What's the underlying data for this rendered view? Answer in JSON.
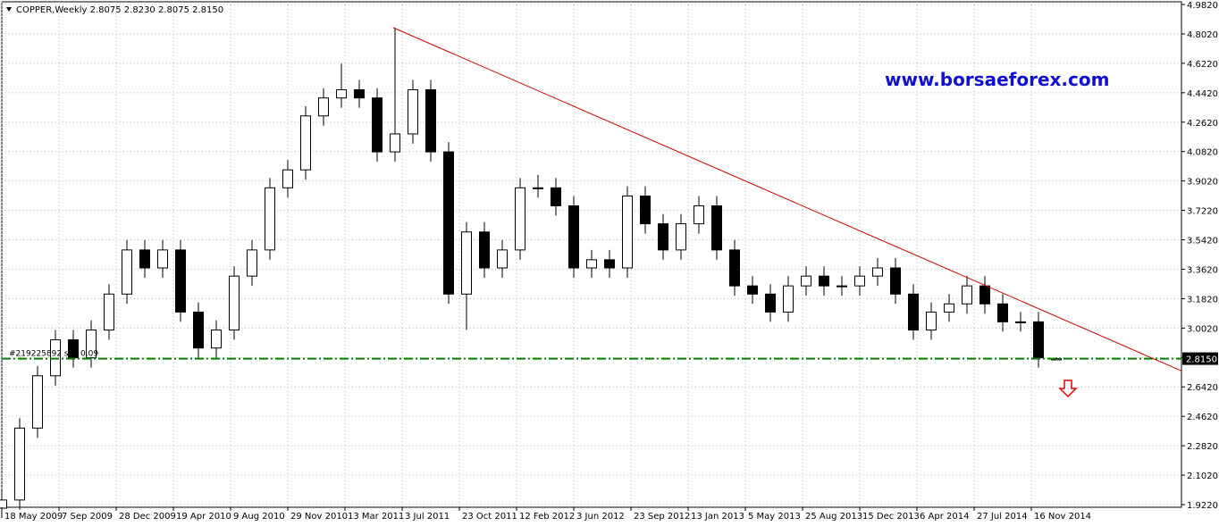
{
  "chart_data": {
    "type": "candlestick",
    "title": "COPPER,Weekly  2.8075 2.8230 2.8075 2.8150",
    "watermark": "www.borsaeforex.com",
    "x": [
      0,
      5,
      10,
      15,
      20,
      25,
      30,
      35,
      40,
      45,
      50,
      55,
      60,
      65,
      70,
      75,
      80,
      85,
      90,
      95,
      100,
      105,
      110,
      115,
      120,
      125,
      130,
      135,
      140,
      145,
      150,
      155,
      160,
      165,
      170,
      175,
      180,
      185,
      190,
      195,
      200,
      205,
      210,
      215,
      220,
      225,
      230,
      235,
      240,
      245,
      250,
      255,
      260,
      265,
      270,
      275,
      280,
      285,
      290,
      295
    ],
    "open": [
      1.9,
      1.95,
      2.39,
      2.71,
      2.93,
      2.82,
      2.99,
      3.21,
      3.48,
      3.37,
      3.48,
      3.1,
      2.88,
      2.99,
      3.32,
      3.48,
      3.86,
      3.97,
      4.3,
      4.41,
      4.46,
      4.41,
      4.08,
      4.19,
      4.46,
      4.08,
      3.21,
      3.59,
      3.37,
      3.48,
      3.86,
      3.86,
      3.75,
      3.37,
      3.42,
      3.37,
      3.81,
      3.64,
      3.48,
      3.64,
      3.75,
      3.48,
      3.26,
      3.21,
      3.1,
      3.26,
      3.32,
      3.26,
      3.26,
      3.32,
      3.37,
      3.21,
      2.99,
      3.1,
      3.15,
      3.26,
      3.15,
      3.04,
      3.04,
      2.8075
    ],
    "high": [
      2.01,
      2.45,
      2.77,
      2.99,
      2.99,
      3.05,
      3.27,
      3.54,
      3.54,
      3.54,
      3.54,
      3.16,
      3.05,
      3.38,
      3.54,
      3.92,
      4.03,
      4.36,
      4.47,
      4.62,
      4.52,
      4.47,
      4.84,
      4.52,
      4.52,
      4.14,
      3.65,
      3.65,
      3.54,
      3.92,
      3.94,
      3.92,
      3.81,
      3.48,
      3.48,
      3.87,
      3.87,
      3.7,
      3.7,
      3.81,
      3.81,
      3.54,
      3.32,
      3.27,
      3.32,
      3.38,
      3.38,
      3.32,
      3.38,
      3.43,
      3.43,
      3.27,
      3.16,
      3.21,
      3.32,
      3.32,
      3.21,
      3.1,
      3.1,
      2.823
    ],
    "low": [
      1.84,
      1.89,
      2.33,
      2.65,
      2.76,
      2.76,
      2.93,
      3.15,
      3.31,
      3.31,
      3.04,
      2.82,
      2.82,
      2.93,
      3.26,
      3.42,
      3.8,
      3.91,
      4.24,
      4.35,
      4.35,
      4.02,
      4.02,
      4.13,
      4.02,
      3.15,
      2.99,
      3.31,
      3.31,
      3.42,
      3.8,
      3.69,
      3.31,
      3.31,
      3.31,
      3.31,
      3.58,
      3.42,
      3.42,
      3.58,
      3.42,
      3.2,
      3.15,
      3.04,
      3.04,
      3.2,
      3.2,
      3.2,
      3.2,
      3.26,
      3.15,
      2.93,
      2.93,
      3.04,
      3.09,
      3.09,
      2.98,
      2.98,
      2.76,
      2.8075
    ],
    "close": [
      1.95,
      2.39,
      2.71,
      2.93,
      2.82,
      2.99,
      3.21,
      3.48,
      3.37,
      3.48,
      3.1,
      2.88,
      2.99,
      3.32,
      3.48,
      3.86,
      3.97,
      4.3,
      4.41,
      4.46,
      4.41,
      4.08,
      4.19,
      4.46,
      4.08,
      3.21,
      3.59,
      3.37,
      3.48,
      3.86,
      3.86,
      3.75,
      3.37,
      3.42,
      3.37,
      3.81,
      3.64,
      3.48,
      3.64,
      3.75,
      3.48,
      3.26,
      3.21,
      3.1,
      3.26,
      3.32,
      3.26,
      3.26,
      3.32,
      3.37,
      3.21,
      2.99,
      3.1,
      3.15,
      3.26,
      3.15,
      3.04,
      3.04,
      2.82,
      2.815
    ],
    "xlim": [
      0,
      330
    ],
    "ylim": [
      1.922,
      4.982
    ],
    "xticks": [
      {
        "value": 0,
        "label": "18 May 2009"
      },
      {
        "value": 16,
        "label": "7 Sep 2009"
      },
      {
        "value": 32,
        "label": "28 Dec 2009"
      },
      {
        "value": 48,
        "label": "19 Apr 2010"
      },
      {
        "value": 64,
        "label": "9 Aug 2010"
      },
      {
        "value": 80,
        "label": "29 Nov 2010"
      },
      {
        "value": 96,
        "label": "13 Mar 2011"
      },
      {
        "value": 112,
        "label": "3 Jul 2011"
      },
      {
        "value": 128,
        "label": "23 Oct 2011"
      },
      {
        "value": 144,
        "label": "12 Feb 2012"
      },
      {
        "value": 160,
        "label": "3 Jun 2012"
      },
      {
        "value": 176,
        "label": "23 Sep 2012"
      },
      {
        "value": 192,
        "label": "13 Jan 2013"
      },
      {
        "value": 208,
        "label": "5 May 2013"
      },
      {
        "value": 224,
        "label": "25 Aug 2013"
      },
      {
        "value": 240,
        "label": "15 Dec 2013"
      },
      {
        "value": 256,
        "label": "6 Apr 2014"
      },
      {
        "value": 272,
        "label": "27 Jul 2014"
      },
      {
        "value": 288,
        "label": "16 Nov 2014"
      }
    ],
    "yticks": [
      {
        "value": 4.982,
        "label": "4.9820"
      },
      {
        "value": 4.802,
        "label": "4.8020"
      },
      {
        "value": 4.622,
        "label": "4.6220"
      },
      {
        "value": 4.442,
        "label": "4.4420"
      },
      {
        "value": 4.262,
        "label": "4.2620"
      },
      {
        "value": 4.082,
        "label": "4.0820"
      },
      {
        "value": 3.902,
        "label": "3.9020"
      },
      {
        "value": 3.722,
        "label": "3.7220"
      },
      {
        "value": 3.542,
        "label": "3.5420"
      },
      {
        "value": 3.362,
        "label": "3.3620"
      },
      {
        "value": 3.182,
        "label": "3.1820"
      },
      {
        "value": 3.002,
        "label": "3.0020"
      },
      {
        "value": 2.822,
        "label": "2.8220"
      },
      {
        "value": 2.642,
        "label": "2.6420"
      },
      {
        "value": 2.462,
        "label": "2.4620"
      },
      {
        "value": 2.282,
        "label": "2.2820"
      },
      {
        "value": 2.102,
        "label": "2.1020"
      },
      {
        "value": 1.922,
        "label": "1.9220"
      }
    ],
    "grid": true,
    "order_line": {
      "value": 2.815,
      "label": "2.8150",
      "text": "#219225892 sell 0.09",
      "color": "#008000"
    },
    "trendline": {
      "x": [
        109.5,
        330
      ],
      "y": [
        4.84,
        2.74
      ],
      "color": "#cc0000"
    }
  }
}
